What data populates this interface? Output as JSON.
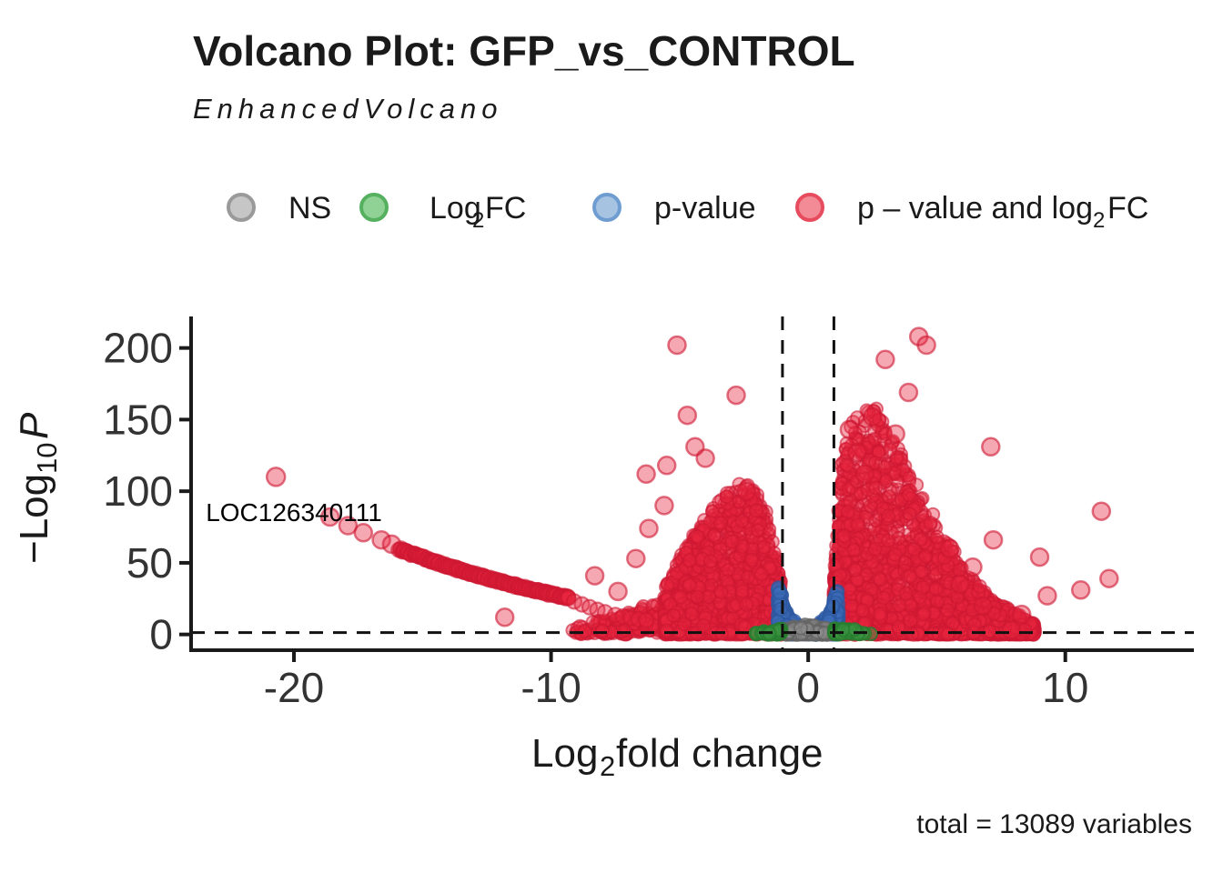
{
  "title": "Volcano Plot: GFP_vs_CONTROL",
  "subtitle": "EnhancedVolcano",
  "caption": "total = 13089 variables",
  "legend": {
    "items": [
      {
        "id": "ns",
        "label": "NS",
        "swatch_fill": "#c6c6c6",
        "swatch_stroke": "#9a9a9a"
      },
      {
        "id": "log2fc",
        "label_main": "Log",
        "label_sub": "2",
        "label_tail": " FC",
        "swatch_fill": "#90d295",
        "swatch_stroke": "#55b160"
      },
      {
        "id": "pvalue",
        "label": "p-value",
        "swatch_fill": "#a6c3e2",
        "swatch_stroke": "#6f9dd1"
      },
      {
        "id": "both",
        "label_main": "p – value and log",
        "label_sub": "2",
        "label_tail": " FC",
        "swatch_fill": "#f28b96",
        "swatch_stroke": "#e64c5e"
      }
    ]
  },
  "axes": {
    "x": {
      "label_main": "Log",
      "label_sub": "2",
      "label_tail": " fold change",
      "tick_labels": [
        "-20",
        "-10",
        "0",
        "10"
      ],
      "tick_values": [
        -20,
        -10,
        0,
        10
      ]
    },
    "y": {
      "label_main": "−Log",
      "label_sub": "10",
      "label_tail": " P",
      "tick_labels": [
        "0",
        "50",
        "100",
        "150",
        "200"
      ],
      "tick_values": [
        0,
        50,
        100,
        150,
        200
      ]
    }
  },
  "chart_data": {
    "type": "scatter",
    "subtype": "volcano",
    "title": "Volcano Plot: GFP_vs_CONTROL",
    "subtitle": "EnhancedVolcano",
    "xlabel": "Log2 fold change",
    "ylabel": "-Log10 P",
    "xlim": [
      -24,
      15
    ],
    "ylim": [
      -11,
      222
    ],
    "x_ticks": [
      -20,
      -10,
      0,
      10
    ],
    "y_ticks": [
      0,
      50,
      100,
      150,
      200
    ],
    "grid": false,
    "legend_position": "top",
    "legend_categories": [
      "NS",
      "Log2 FC",
      "p-value",
      "p-value and log2 FC"
    ],
    "total_variables": 13089,
    "thresholds": {
      "log2fc_cutoffs": [
        -1,
        1
      ],
      "pvalue_cutoff_y": 1.3,
      "line_style": "dashed"
    },
    "labeled_points": [
      {
        "label": "LOC126340111",
        "x": -20.7,
        "y": 110,
        "category": "both"
      }
    ],
    "colors": {
      "ns": {
        "fill": "rgba(140,140,140,0.55)",
        "stroke": "rgba(100,100,100,0.75)"
      },
      "fc": {
        "fill": "rgba(60,150,65,0.50)",
        "stroke": "rgba(40,125,48,0.80)"
      },
      "pvalue": {
        "fill": "rgba(62,110,185,0.50)",
        "stroke": "rgba(45,88,160,0.75)"
      },
      "both": {
        "fill": "rgba(233,37,62,0.40)",
        "stroke": "rgba(205,24,50,0.60)"
      }
    },
    "seed": 42,
    "point_radius": {
      "cluster": 7,
      "arc": 8,
      "outlier": 9.5,
      "labeled": 10
    },
    "outlier_points": {
      "category": "both",
      "points": [
        [
          -5.1,
          202
        ],
        [
          -2.8,
          167
        ],
        [
          -4.7,
          153
        ],
        [
          -4.4,
          131
        ],
        [
          -4.0,
          123
        ],
        [
          -5.5,
          118
        ],
        [
          -6.3,
          112
        ],
        [
          -2.4,
          100
        ],
        [
          -5.6,
          90
        ],
        [
          -6.2,
          74
        ],
        [
          -6.7,
          53
        ],
        [
          -8.3,
          41
        ],
        [
          -7.4,
          30
        ],
        [
          -11.8,
          12
        ],
        [
          4.3,
          208
        ],
        [
          4.6,
          202
        ],
        [
          3.0,
          192
        ],
        [
          3.9,
          169
        ],
        [
          2.5,
          152
        ],
        [
          1.6,
          143
        ],
        [
          3.4,
          140
        ],
        [
          1.9,
          127
        ],
        [
          7.1,
          131
        ],
        [
          2.2,
          112
        ],
        [
          11.4,
          86
        ],
        [
          7.2,
          66
        ],
        [
          9.0,
          54
        ],
        [
          11.7,
          39
        ],
        [
          10.6,
          31
        ],
        [
          9.3,
          27
        ],
        [
          8.3,
          14
        ],
        [
          7.9,
          3
        ],
        [
          6.8,
          20
        ],
        [
          5.9,
          35
        ],
        [
          6.4,
          47
        ],
        [
          5.5,
          60
        ]
      ]
    },
    "arc": {
      "category": "both",
      "sparse": [
        [
          -18.6,
          82
        ],
        [
          -17.9,
          76
        ],
        [
          -17.3,
          71
        ],
        [
          -16.6,
          66
        ],
        [
          -16.2,
          63
        ]
      ],
      "dense": {
        "from": [
          -15.9,
          59.5
        ],
        "to": [
          -9.3,
          25.5
        ],
        "sag": 2.5,
        "count": 175
      },
      "tail": [
        [
          -9.1,
          23
        ],
        [
          -8.8,
          21
        ],
        [
          -8.5,
          19
        ],
        [
          -8.2,
          17.2
        ],
        [
          -7.9,
          15.5
        ],
        [
          -7.5,
          13.6
        ],
        [
          -7.2,
          12.5
        ],
        [
          -6.9,
          11.5
        ],
        [
          -6.6,
          10.6
        ],
        [
          -6.3,
          10
        ]
      ]
    },
    "clusters": [
      {
        "id": "left-tail",
        "category": "both",
        "count": 150,
        "x": [
          -9.2,
          -5.6
        ],
        "x_pow": 0.8,
        "env": [
          [
            -9.2,
            4
          ],
          [
            -8.0,
            9
          ],
          [
            -7.0,
            15
          ],
          [
            -6.3,
            20
          ],
          [
            -5.6,
            27
          ]
        ],
        "y_pow": 1.3
      },
      {
        "id": "left-main",
        "category": "both",
        "count": 1600,
        "x": [
          -5.6,
          -1.0
        ],
        "x_pow": 1.0,
        "env": [
          [
            -5.6,
            30
          ],
          [
            -5.0,
            52
          ],
          [
            -4.5,
            68
          ],
          [
            -4.0,
            80
          ],
          [
            -3.5,
            92
          ],
          [
            -3.0,
            100
          ],
          [
            -2.5,
            106
          ],
          [
            -2.0,
            102
          ],
          [
            -1.7,
            90
          ],
          [
            -1.4,
            64
          ],
          [
            -1.15,
            42
          ],
          [
            -1.0,
            32
          ]
        ],
        "y_pow": 2.0
      },
      {
        "id": "right-main",
        "category": "both",
        "count": 2500,
        "x": [
          1.0,
          8.8
        ],
        "x_pow": 1.35,
        "env": [
          [
            1.0,
            36
          ],
          [
            1.3,
            120
          ],
          [
            1.7,
            148
          ],
          [
            2.2,
            155
          ],
          [
            2.7,
            158
          ],
          [
            3.2,
            142
          ],
          [
            3.7,
            122
          ],
          [
            4.2,
            104
          ],
          [
            4.7,
            88
          ],
          [
            5.2,
            72
          ],
          [
            5.7,
            57
          ],
          [
            6.2,
            43
          ],
          [
            6.7,
            32
          ],
          [
            7.2,
            23
          ],
          [
            7.7,
            17
          ],
          [
            8.2,
            12
          ],
          [
            8.8,
            8
          ]
        ],
        "y_pow": 2.1
      },
      {
        "id": "pvalue-v",
        "category": "pvalue",
        "count": 700,
        "half_x": 1.18,
        "x_pow": 0.55,
        "symmetric": true,
        "env": [
          [
            0,
            4
          ],
          [
            0.3,
            5
          ],
          [
            0.6,
            9
          ],
          [
            0.8,
            14
          ],
          [
            0.95,
            21
          ],
          [
            1.05,
            27
          ],
          [
            1.18,
            33
          ]
        ],
        "y_pow": 1.5
      },
      {
        "id": "ns-bottom",
        "category": "ns",
        "count": 340,
        "x": [
          -0.92,
          0.92
        ],
        "x_pow": 1.0,
        "env": [
          [
            -0.92,
            2.5
          ],
          [
            -0.5,
            5
          ],
          [
            0,
            6
          ],
          [
            0.5,
            5
          ],
          [
            0.92,
            2.5
          ]
        ],
        "y_pow": 1.8
      },
      {
        "id": "fc-left",
        "category": "fc",
        "count": 30,
        "x": [
          -2.4,
          -1.02
        ],
        "x_pow": 0.45,
        "env": [
          [
            -2.4,
            1.2
          ],
          [
            -1.6,
            2
          ],
          [
            -1.02,
            3
          ]
        ],
        "y_pow": 1.0
      },
      {
        "id": "fc-right",
        "category": "fc",
        "count": 45,
        "x": [
          1.02,
          2.9
        ],
        "x_pow": 2.2,
        "env": [
          [
            1.02,
            3.2
          ],
          [
            1.8,
            2
          ],
          [
            2.9,
            1.2
          ]
        ],
        "y_pow": 1.0
      }
    ]
  }
}
